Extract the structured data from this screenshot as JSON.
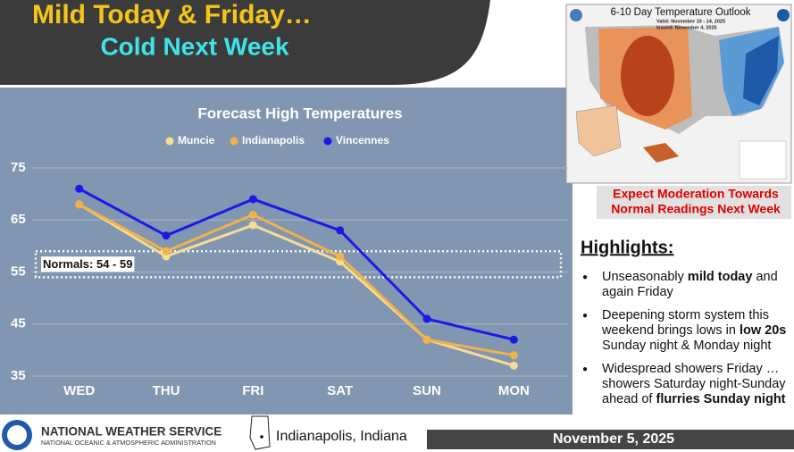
{
  "header": {
    "title": "Mild Today & Friday…",
    "subtitle": "Cold Next Week"
  },
  "chart_data": {
    "type": "line",
    "title": "Forecast High Temperatures",
    "categories": [
      "WED",
      "THU",
      "FRI",
      "SAT",
      "SUN",
      "MON"
    ],
    "series": [
      {
        "name": "Muncie",
        "color": "#f7dc94",
        "values": [
          68,
          58,
          64,
          57,
          42,
          37
        ]
      },
      {
        "name": "Indianapolis",
        "color": "#f2b24a",
        "values": [
          68,
          59,
          66,
          58,
          42,
          39
        ]
      },
      {
        "name": "Vincennes",
        "color": "#1a1ae6",
        "values": [
          71,
          62,
          69,
          63,
          46,
          42
        ]
      }
    ],
    "ylim": [
      35,
      75
    ],
    "yticks": [
      35,
      45,
      55,
      65,
      75
    ],
    "grid": true,
    "annotation": {
      "label": "Normals: 54 - 59",
      "range": [
        54,
        59
      ]
    }
  },
  "outlook_map": {
    "title": "6-10 Day Temperature Outlook",
    "valid": "Valid: November 10 - 14, 2025",
    "issued": "Issued: November 4, 2025"
  },
  "callout": {
    "lines": [
      "Expect Moderation Towards",
      "Normal Readings Next Week"
    ]
  },
  "highlights": {
    "title": "Highlights:",
    "bullets": [
      [
        {
          "text": "Unseasonably "
        },
        {
          "text": "mild today",
          "bold": true
        },
        {
          "text": " and again Friday"
        }
      ],
      [
        {
          "text": "Deepening storm system this weekend brings lows in "
        },
        {
          "text": "low 20s",
          "bold": true
        },
        {
          "text": " Sunday night & Monday night"
        }
      ],
      [
        {
          "text": "Widespread showers Friday … showers Saturday night-Sunday ahead of "
        },
        {
          "text": "flurries Sunday night",
          "bold": true
        }
      ]
    ]
  },
  "footer": {
    "agency": "NATIONAL WEATHER SERVICE",
    "agency_sub": "NATIONAL OCEANIC & ATMOSPHERIC ADMINISTRATION",
    "office": "Indianapolis, Indiana",
    "date": "November 5, 2025"
  }
}
